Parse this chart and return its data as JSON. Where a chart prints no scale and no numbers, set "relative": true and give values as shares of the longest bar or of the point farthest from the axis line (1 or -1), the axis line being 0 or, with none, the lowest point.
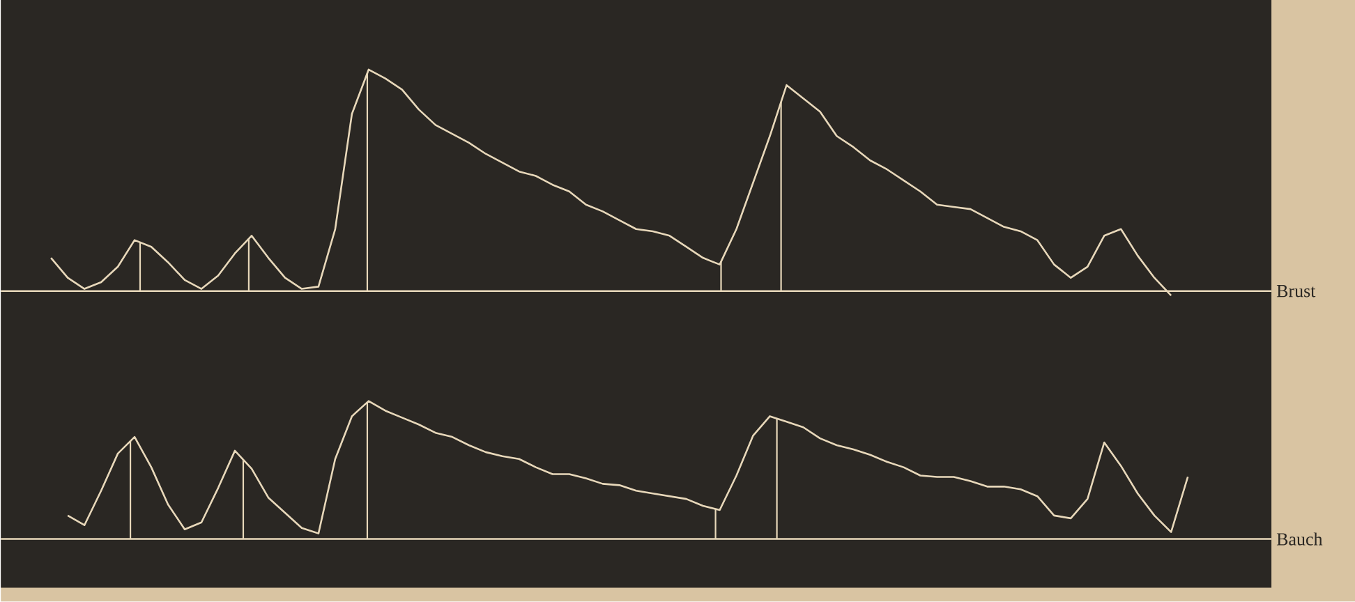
{
  "chart_data": [
    {
      "type": "line",
      "relative": true,
      "categories": [
        null,
        null,
        null,
        null,
        null,
        null,
        null,
        null,
        null,
        null,
        null,
        null,
        null,
        null,
        null,
        null,
        null,
        null,
        null,
        null,
        null,
        null,
        null,
        null,
        null,
        null,
        null,
        null,
        null,
        null,
        null,
        null,
        null,
        null,
        null,
        null,
        null,
        null,
        null,
        null,
        null,
        null,
        null,
        null,
        null,
        null,
        null,
        null,
        null,
        null,
        null,
        null,
        null,
        null,
        null,
        null,
        null,
        null,
        null,
        null,
        null,
        null,
        null,
        null,
        null,
        null,
        null,
        null
      ],
      "series": [
        {
          "name": "Brust",
          "color": "#e8d8ba",
          "values": [
            0.15,
            0.06,
            0.01,
            0.04,
            0.11,
            0.23,
            0.2,
            0.13,
            0.05,
            0.01,
            0.07,
            0.17,
            0.25,
            0.15,
            0.06,
            0.01,
            0.02,
            0.28,
            0.8,
            1.0,
            0.96,
            0.91,
            0.82,
            0.75,
            0.71,
            0.67,
            0.62,
            0.58,
            0.54,
            0.52,
            0.48,
            0.45,
            0.39,
            0.36,
            0.32,
            0.28,
            0.27,
            0.25,
            0.2,
            0.15,
            0.12,
            0.28,
            0.49,
            0.7,
            0.93,
            0.87,
            0.81,
            0.7,
            0.65,
            0.59,
            0.55,
            0.5,
            0.45,
            0.39,
            0.38,
            0.37,
            0.33,
            0.29,
            0.27,
            0.23,
            0.12,
            0.06,
            0.11,
            0.25,
            0.28,
            0.16,
            0.06,
            -0.02
          ]
        }
      ],
      "ref_lines": [
        {
          "axis": "y",
          "value": 0,
          "color": "#e8d8ba"
        }
      ]
    },
    {
      "type": "line",
      "relative": true,
      "categories": [
        null,
        null,
        null,
        null,
        null,
        null,
        null,
        null,
        null,
        null,
        null,
        null,
        null,
        null,
        null,
        null,
        null,
        null,
        null,
        null,
        null,
        null,
        null,
        null,
        null,
        null,
        null,
        null,
        null,
        null,
        null,
        null,
        null,
        null,
        null,
        null,
        null,
        null,
        null,
        null,
        null,
        null,
        null,
        null,
        null,
        null,
        null,
        null,
        null,
        null,
        null,
        null,
        null,
        null,
        null,
        null,
        null,
        null,
        null,
        null,
        null,
        null,
        null,
        null,
        null,
        null,
        null,
        null
      ],
      "series": [
        {
          "name": "Bauch",
          "color": "#e8d8ba",
          "values": [
            0.17,
            0.1,
            0.35,
            0.62,
            0.74,
            0.52,
            0.25,
            0.07,
            0.12,
            0.37,
            0.64,
            0.51,
            0.3,
            0.19,
            0.08,
            0.04,
            0.58,
            0.89,
            1.0,
            0.93,
            0.88,
            0.83,
            0.77,
            0.74,
            0.68,
            0.63,
            0.6,
            0.58,
            0.52,
            0.47,
            0.47,
            0.44,
            0.4,
            0.39,
            0.35,
            0.33,
            0.31,
            0.29,
            0.24,
            0.21,
            0.46,
            0.75,
            0.89,
            0.85,
            0.81,
            0.73,
            0.68,
            0.65,
            0.61,
            0.56,
            0.52,
            0.46,
            0.45,
            0.45,
            0.42,
            0.38,
            0.38,
            0.36,
            0.31,
            0.17,
            0.15,
            0.29,
            0.7,
            0.53,
            0.33,
            0.17,
            0.05,
            0.45
          ]
        }
      ],
      "ref_lines": [
        {
          "axis": "y",
          "value": 0,
          "color": "#e8d8ba"
        }
      ]
    }
  ]
}
